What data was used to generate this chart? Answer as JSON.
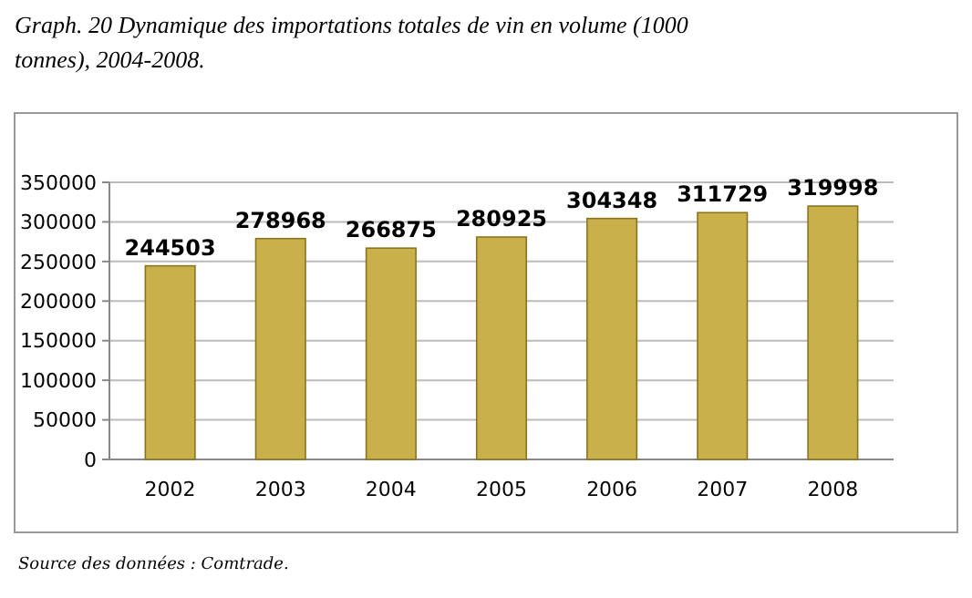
{
  "chart_data": {
    "type": "bar",
    "title": "Graph. 20 Dynamique des importations totales de vin en volume (1000 tonnes), 2004-2008.",
    "categories": [
      "2002",
      "2003",
      "2004",
      "2005",
      "2006",
      "2007",
      "2008"
    ],
    "values": [
      244503,
      278968,
      266875,
      280925,
      304348,
      311729,
      319998
    ],
    "color": "#c9b04a",
    "ylim": [
      0,
      350000
    ],
    "yticks": [
      0,
      50000,
      100000,
      150000,
      200000,
      250000,
      300000,
      350000
    ],
    "grid": "y",
    "data_labels": true,
    "annotations": [
      "Source des données : Comtrade."
    ]
  }
}
